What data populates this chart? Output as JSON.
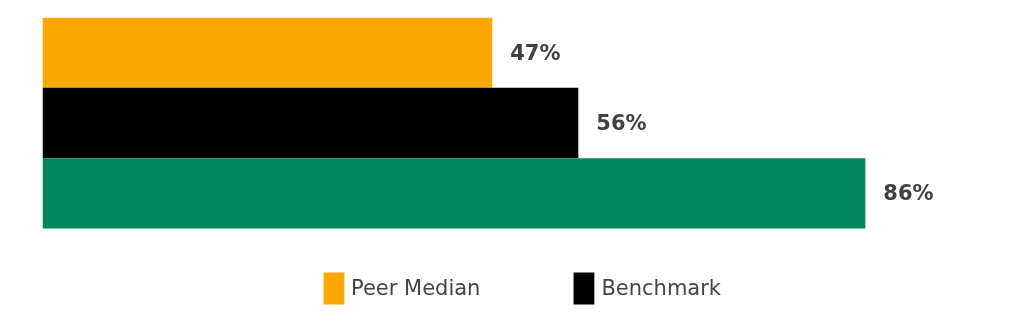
{
  "chart_data": {
    "type": "bar",
    "orientation": "horizontal",
    "categories": [
      null
    ],
    "series": [
      {
        "name": "Peer Median",
        "color": "#fca800",
        "values": [
          47
        ],
        "value_labels": [
          "47%"
        ]
      },
      {
        "name": "Benchmark",
        "color": "#000000",
        "values": [
          56
        ],
        "value_labels": [
          "56%"
        ]
      },
      {
        "color": "#00885c",
        "values": [
          86
        ],
        "value_labels": [
          "86%"
        ]
      }
    ],
    "tick_labels": false,
    "grid": false,
    "legend": "bottom"
  }
}
